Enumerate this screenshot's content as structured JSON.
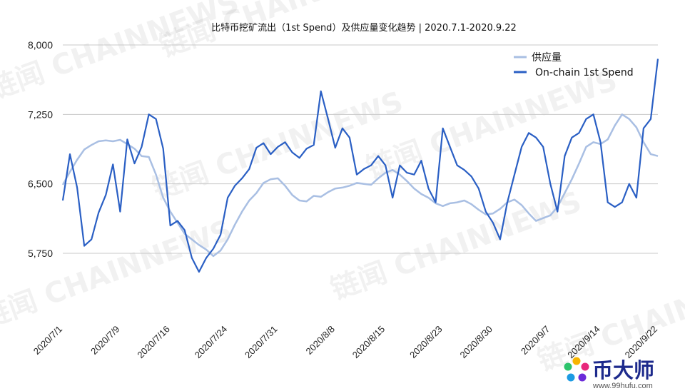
{
  "chart_data": {
    "type": "line",
    "title": "比特币挖矿流出（1st Spend）及供应量变化趋势 | 2020.7.1-2020.9.22",
    "xlabel": "",
    "ylabel": "",
    "ylim": [
      5000,
      8000
    ],
    "yticks": [
      "8,000",
      "7,250",
      "6,500",
      "5,750"
    ],
    "ytick_values": [
      8000,
      7250,
      6500,
      5750
    ],
    "x_start": "2020-07-01",
    "x_end": "2020-09-22",
    "xticks": [
      "2020/7/1",
      "2020/7/9",
      "2020/7/16",
      "2020/7/24",
      "2020/7/31",
      "2020/8/8",
      "2020/8/15",
      "2020/8/23",
      "2020/8/30",
      "2020/9/7",
      "2020/9/14",
      "2020/9/22"
    ],
    "xtick_dates": [
      "2020-07-01",
      "2020-07-09",
      "2020-07-16",
      "2020-07-24",
      "2020-07-31",
      "2020-08-08",
      "2020-08-15",
      "2020-08-23",
      "2020-08-30",
      "2020-09-07",
      "2020-09-14",
      "2020-09-22"
    ],
    "grid": true,
    "legend_position": "top-right",
    "series": [
      {
        "name": "供应量",
        "color": "#a9bfe3",
        "points": [
          [
            "2020-07-01",
            6490
          ],
          [
            "2020-07-02",
            6630
          ],
          [
            "2020-07-03",
            6760
          ],
          [
            "2020-07-04",
            6870
          ],
          [
            "2020-07-05",
            6920
          ],
          [
            "2020-07-06",
            6960
          ],
          [
            "2020-07-07",
            6970
          ],
          [
            "2020-07-08",
            6960
          ],
          [
            "2020-07-09",
            6975
          ],
          [
            "2020-07-10",
            6930
          ],
          [
            "2020-07-11",
            6880
          ],
          [
            "2020-07-12",
            6800
          ],
          [
            "2020-07-13",
            6790
          ],
          [
            "2020-07-14",
            6600
          ],
          [
            "2020-07-15",
            6350
          ],
          [
            "2020-07-16",
            6200
          ],
          [
            "2020-07-17",
            6080
          ],
          [
            "2020-07-18",
            5960
          ],
          [
            "2020-07-19",
            5900
          ],
          [
            "2020-07-20",
            5840
          ],
          [
            "2020-07-21",
            5790
          ],
          [
            "2020-07-22",
            5720
          ],
          [
            "2020-07-23",
            5780
          ],
          [
            "2020-07-24",
            5900
          ],
          [
            "2020-07-25",
            6060
          ],
          [
            "2020-07-26",
            6200
          ],
          [
            "2020-07-27",
            6320
          ],
          [
            "2020-07-28",
            6400
          ],
          [
            "2020-07-29",
            6510
          ],
          [
            "2020-07-30",
            6550
          ],
          [
            "2020-07-31",
            6560
          ],
          [
            "2020-08-01",
            6480
          ],
          [
            "2020-08-02",
            6380
          ],
          [
            "2020-08-03",
            6320
          ],
          [
            "2020-08-04",
            6310
          ],
          [
            "2020-08-05",
            6370
          ],
          [
            "2020-08-06",
            6360
          ],
          [
            "2020-08-07",
            6410
          ],
          [
            "2020-08-08",
            6450
          ],
          [
            "2020-08-09",
            6460
          ],
          [
            "2020-08-10",
            6480
          ],
          [
            "2020-08-11",
            6510
          ],
          [
            "2020-08-12",
            6500
          ],
          [
            "2020-08-13",
            6490
          ],
          [
            "2020-08-14",
            6560
          ],
          [
            "2020-08-15",
            6620
          ],
          [
            "2020-08-16",
            6650
          ],
          [
            "2020-08-17",
            6600
          ],
          [
            "2020-08-18",
            6530
          ],
          [
            "2020-08-19",
            6450
          ],
          [
            "2020-08-20",
            6390
          ],
          [
            "2020-08-21",
            6350
          ],
          [
            "2020-08-22",
            6290
          ],
          [
            "2020-08-23",
            6260
          ],
          [
            "2020-08-24",
            6290
          ],
          [
            "2020-08-25",
            6300
          ],
          [
            "2020-08-26",
            6320
          ],
          [
            "2020-08-27",
            6280
          ],
          [
            "2020-08-28",
            6220
          ],
          [
            "2020-08-29",
            6170
          ],
          [
            "2020-08-30",
            6180
          ],
          [
            "2020-08-31",
            6230
          ],
          [
            "2020-09-01",
            6300
          ],
          [
            "2020-09-02",
            6330
          ],
          [
            "2020-09-03",
            6270
          ],
          [
            "2020-09-04",
            6180
          ],
          [
            "2020-09-05",
            6100
          ],
          [
            "2020-09-06",
            6130
          ],
          [
            "2020-09-07",
            6160
          ],
          [
            "2020-09-08",
            6250
          ],
          [
            "2020-09-09",
            6400
          ],
          [
            "2020-09-10",
            6550
          ],
          [
            "2020-09-11",
            6720
          ],
          [
            "2020-09-12",
            6900
          ],
          [
            "2020-09-13",
            6950
          ],
          [
            "2020-09-14",
            6930
          ],
          [
            "2020-09-15",
            6980
          ],
          [
            "2020-09-16",
            7130
          ],
          [
            "2020-09-17",
            7250
          ],
          [
            "2020-09-18",
            7200
          ],
          [
            "2020-09-19",
            7110
          ],
          [
            "2020-09-20",
            6950
          ],
          [
            "2020-09-21",
            6820
          ],
          [
            "2020-09-22",
            6800
          ]
        ]
      },
      {
        "name": "On-chain 1st Spend",
        "color": "#2a5fc4",
        "points": [
          [
            "2020-07-01",
            6320
          ],
          [
            "2020-07-02",
            6820
          ],
          [
            "2020-07-03",
            6460
          ],
          [
            "2020-07-04",
            5830
          ],
          [
            "2020-07-05",
            5900
          ],
          [
            "2020-07-06",
            6190
          ],
          [
            "2020-07-07",
            6380
          ],
          [
            "2020-07-08",
            6710
          ],
          [
            "2020-07-09",
            6200
          ],
          [
            "2020-07-10",
            6980
          ],
          [
            "2020-07-11",
            6720
          ],
          [
            "2020-07-12",
            6900
          ],
          [
            "2020-07-13",
            7250
          ],
          [
            "2020-07-14",
            7200
          ],
          [
            "2020-07-15",
            6880
          ],
          [
            "2020-07-16",
            6050
          ],
          [
            "2020-07-17",
            6100
          ],
          [
            "2020-07-18",
            6000
          ],
          [
            "2020-07-19",
            5700
          ],
          [
            "2020-07-20",
            5550
          ],
          [
            "2020-07-21",
            5700
          ],
          [
            "2020-07-22",
            5800
          ],
          [
            "2020-07-23",
            5950
          ],
          [
            "2020-07-24",
            6350
          ],
          [
            "2020-07-25",
            6480
          ],
          [
            "2020-07-26",
            6560
          ],
          [
            "2020-07-27",
            6660
          ],
          [
            "2020-07-28",
            6890
          ],
          [
            "2020-07-29",
            6940
          ],
          [
            "2020-07-30",
            6820
          ],
          [
            "2020-07-31",
            6900
          ],
          [
            "2020-08-01",
            6950
          ],
          [
            "2020-08-02",
            6840
          ],
          [
            "2020-08-03",
            6780
          ],
          [
            "2020-08-04",
            6880
          ],
          [
            "2020-08-05",
            6920
          ],
          [
            "2020-08-06",
            7500
          ],
          [
            "2020-08-07",
            7200
          ],
          [
            "2020-08-08",
            6890
          ],
          [
            "2020-08-09",
            7100
          ],
          [
            "2020-08-10",
            7000
          ],
          [
            "2020-08-11",
            6600
          ],
          [
            "2020-08-12",
            6660
          ],
          [
            "2020-08-13",
            6700
          ],
          [
            "2020-08-14",
            6800
          ],
          [
            "2020-08-15",
            6700
          ],
          [
            "2020-08-16",
            6350
          ],
          [
            "2020-08-17",
            6700
          ],
          [
            "2020-08-18",
            6620
          ],
          [
            "2020-08-19",
            6600
          ],
          [
            "2020-08-20",
            6750
          ],
          [
            "2020-08-21",
            6450
          ],
          [
            "2020-08-22",
            6300
          ],
          [
            "2020-08-23",
            7100
          ],
          [
            "2020-08-24",
            6900
          ],
          [
            "2020-08-25",
            6700
          ],
          [
            "2020-08-26",
            6650
          ],
          [
            "2020-08-27",
            6580
          ],
          [
            "2020-08-28",
            6450
          ],
          [
            "2020-08-29",
            6200
          ],
          [
            "2020-08-30",
            6080
          ],
          [
            "2020-08-31",
            5900
          ],
          [
            "2020-09-01",
            6300
          ],
          [
            "2020-09-02",
            6600
          ],
          [
            "2020-09-03",
            6900
          ],
          [
            "2020-09-04",
            7050
          ],
          [
            "2020-09-05",
            7000
          ],
          [
            "2020-09-06",
            6900
          ],
          [
            "2020-09-07",
            6500
          ],
          [
            "2020-09-08",
            6200
          ],
          [
            "2020-09-09",
            6800
          ],
          [
            "2020-09-10",
            7000
          ],
          [
            "2020-09-11",
            7050
          ],
          [
            "2020-09-12",
            7200
          ],
          [
            "2020-09-13",
            7250
          ],
          [
            "2020-09-14",
            6950
          ],
          [
            "2020-09-15",
            6300
          ],
          [
            "2020-09-16",
            6250
          ],
          [
            "2020-09-17",
            6300
          ],
          [
            "2020-09-18",
            6500
          ],
          [
            "2020-09-19",
            6350
          ],
          [
            "2020-09-20",
            7100
          ],
          [
            "2020-09-21",
            7200
          ],
          [
            "2020-09-22",
            7850
          ]
        ]
      }
    ]
  },
  "watermark": {
    "text": "CHAINNEWS",
    "cn": "链闻",
    "color": "#000000"
  },
  "logo": {
    "title": "币大师",
    "url": "www.99hufu.com"
  }
}
